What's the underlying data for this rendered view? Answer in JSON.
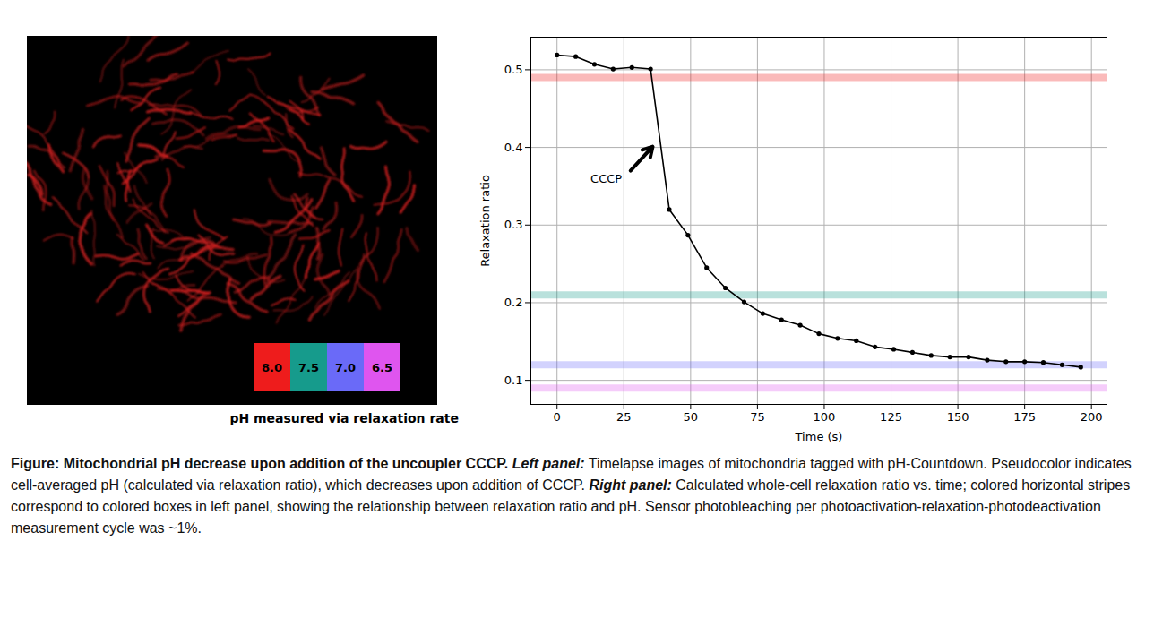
{
  "chart_data": {
    "type": "line",
    "xlabel": "Time (s)",
    "ylabel": "Relaxation ratio",
    "x": [
      0,
      7,
      14,
      21,
      28,
      35,
      42,
      49,
      56,
      63,
      70,
      77,
      84,
      91,
      98,
      105,
      112,
      119,
      126,
      133,
      140,
      147,
      154,
      161,
      168,
      175,
      182,
      189,
      196
    ],
    "values": [
      0.519,
      0.517,
      0.507,
      0.501,
      0.503,
      0.501,
      0.32,
      0.287,
      0.245,
      0.219,
      0.201,
      0.186,
      0.178,
      0.171,
      0.16,
      0.154,
      0.151,
      0.143,
      0.14,
      0.136,
      0.132,
      0.13,
      0.13,
      0.126,
      0.124,
      0.124,
      0.123,
      0.12,
      0.117
    ],
    "color": "#000000",
    "marker": "circle",
    "xlim": [
      -9.8,
      205.8
    ],
    "xticks": [
      0,
      25,
      50,
      75,
      100,
      125,
      150,
      175,
      200
    ],
    "ylim": [
      0.069,
      0.542
    ],
    "yticks": [
      0.1,
      0.2,
      0.3,
      0.4,
      0.5
    ],
    "grid": true,
    "annotations": [
      {
        "text": "CCCP",
        "x": 18.4,
        "y": 0.359,
        "arrow_from": [
          27.5,
          0.37
        ],
        "arrow_to": [
          35.8,
          0.401
        ]
      }
    ],
    "bands": [
      {
        "ph": "8.0",
        "value": 0.49,
        "color": "#ee1c1c"
      },
      {
        "ph": "7.5",
        "value": 0.21,
        "color": "#169b8c"
      },
      {
        "ph": "7.0",
        "value": 0.12,
        "color": "#6a6af8"
      },
      {
        "ph": "6.5",
        "value": 0.09,
        "color": "#df55ef"
      }
    ]
  },
  "image_panel": {
    "caption": "pH measured via relaxation rate"
  },
  "figure_caption": {
    "title": "Figure: Mitochondrial pH decrease upon addition of the uncoupler CCCP.",
    "parts": [
      {
        "label": "Left panel:",
        "text": "Timelapse images of mitochondria tagged with pH-Countdown. Pseudocolor indicates cell-averaged pH (calculated via relaxation ratio), which decreases upon addition of CCCP."
      },
      {
        "label": "Right panel:",
        "text": "Calculated whole-cell relaxation ratio vs. time; colored horizontal stripes correspond to colored boxes in left panel, showing the relationship between relaxation ratio and pH. Sensor photobleaching per photoactivation-relaxation-photodeactivation measurement cycle was ~1%."
      }
    ]
  }
}
